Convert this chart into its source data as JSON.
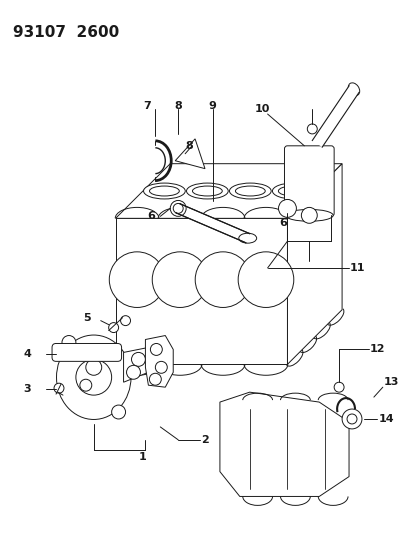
{
  "title": "93107  2600",
  "bg_color": "#ffffff",
  "line_color": "#1a1a1a",
  "title_fontsize": 11,
  "label_fontsize": 8,
  "fig_width": 4.14,
  "fig_height": 5.33,
  "dpi": 100
}
